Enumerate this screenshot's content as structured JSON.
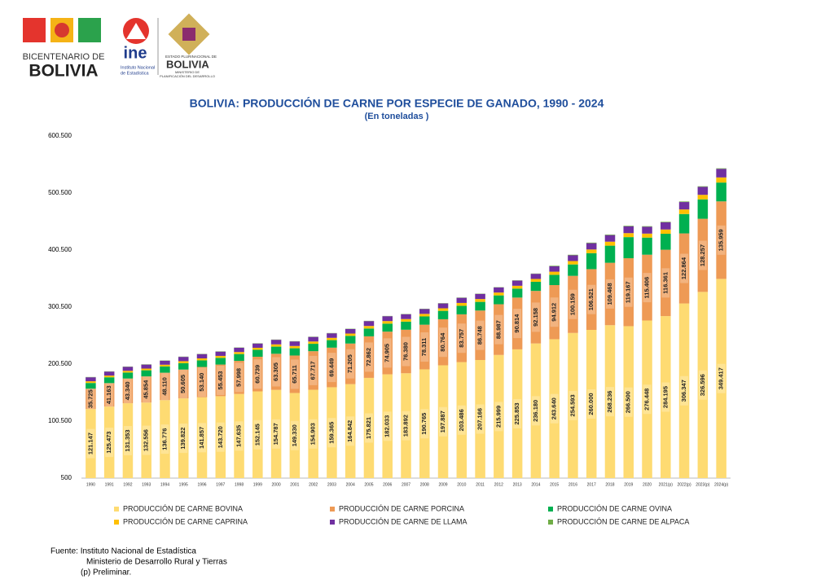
{
  "header": {
    "logo1_line1": "BICENTENARIO DE",
    "logo1_line2": "BOLIVIA",
    "logo2_name": "ine",
    "logo2_line1": "Instituto Nacional",
    "logo2_line2": "de Estadística",
    "logo3_line1": "ESTADO PLURINACIONAL DE",
    "logo3_line2": "BOLIVIA",
    "logo3_line3": "MINISTERIO DE",
    "logo3_line4": "PLANIFICACIÓN DEL DESARROLLO"
  },
  "chart_data": {
    "type": "stacked-bar",
    "title": "BOLIVIA: PRODUCCIÓN DE CARNE POR ESPECIE DE GANADO, 1990 - 2024",
    "subtitle": "(En toneladas )",
    "categories": [
      "1990",
      "1991",
      "1992",
      "1993",
      "1994",
      "1995",
      "1996",
      "1997",
      "1998",
      "1999",
      "2000",
      "2001",
      "2002",
      "2003",
      "2004",
      "2005",
      "2006",
      "2007",
      "2008",
      "2009",
      "2010",
      "2011",
      "2012",
      "2013",
      "2014",
      "2015",
      "2016",
      "2017",
      "2018",
      "2019",
      "2020",
      "2021(p)",
      "2022(p)",
      "2023(p)",
      "2024(p)"
    ],
    "ylim": [
      500,
      600500
    ],
    "yticks": [
      500,
      {
        "value": 100500,
        "label": "100.500"
      },
      {
        "value": 200500,
        "label": "200.500"
      },
      {
        "value": 300500,
        "label": "300.500"
      },
      {
        "value": 400500,
        "label": "400.500"
      },
      {
        "value": 500500,
        "label": "500.500"
      },
      {
        "value": 600500,
        "label": "600.500"
      }
    ],
    "grid": false,
    "legend": "bottom",
    "series": [
      {
        "name": "PRODUCCIÓN DE CARNE BOVINA",
        "color": "#fedb72",
        "values": [
          121147,
          125473,
          131353,
          132556,
          136776,
          139822,
          141857,
          143720,
          147635,
          152145,
          154787,
          149330,
          154903,
          159365,
          164842,
          175821,
          182033,
          183892,
          190765,
          197887,
          203486,
          207166,
          215999,
          225853,
          236180,
          243640,
          254593,
          260000,
          268236,
          266500,
          276448,
          284195,
          306347,
          326596,
          349417
        ],
        "value_labels": [
          "121.147",
          "125.473",
          "131.353",
          "132.556",
          "136.776",
          "139.822",
          "141.857",
          "143.720",
          "147.635",
          "152.145",
          "154.787",
          "149.330",
          "154.903",
          "159.365",
          "164.842",
          "175.821",
          "182.033",
          "183.892",
          "190.765",
          "197.887",
          "203.486",
          "207.166",
          "215.999",
          "225.853",
          "236.180",
          "243.640",
          "254.593",
          "260.000",
          "268.236",
          "266.500",
          "276.448",
          "284.195",
          "306.347",
          "326.596",
          "349.417"
        ]
      },
      {
        "name": "PRODUCCIÓN DE CARNE PORCINA",
        "color": "#ee9a55",
        "values": [
          35725,
          41163,
          43340,
          45854,
          48110,
          50605,
          53140,
          55453,
          57998,
          60739,
          63305,
          65711,
          67717,
          69449,
          71205,
          72862,
          74905,
          76380,
          78311,
          80764,
          83757,
          86748,
          88987,
          90814,
          92158,
          94912,
          100159,
          106521,
          109468,
          119167,
          115406,
          116361,
          122864,
          128257,
          135959
        ],
        "value_labels": [
          "35.725",
          "41.163",
          "43.340",
          "45.854",
          "48.110",
          "50.605",
          "53.140",
          "55.453",
          "57.998",
          "60.739",
          "63.305",
          "65.711",
          "67.717",
          "69.449",
          "71.205",
          "72.862",
          "74.905",
          "76.380",
          "78.311",
          "80.764",
          "83.757",
          "86.748",
          "88.987",
          "90.814",
          "92.158",
          "94.912",
          "100.159",
          "106.521",
          "109.468",
          "119.167",
          "115.406",
          "116.361",
          "122.864",
          "128.257",
          "135.959"
        ]
      },
      {
        "name": "PRODUCCIÓN DE CARNE OVINA",
        "color": "#00b050",
        "values": [
          10000,
          10200,
          10500,
          10700,
          11000,
          11200,
          11500,
          11700,
          12000,
          12200,
          12500,
          12700,
          13000,
          13200,
          13500,
          13700,
          14000,
          14200,
          14500,
          14700,
          15000,
          15200,
          15500,
          15700,
          16000,
          18000,
          20000,
          28000,
          30000,
          37000,
          30000,
          28000,
          34000,
          34000,
          33000
        ]
      },
      {
        "name": "PRODUCCIÓN DE CARNE CAPRINA",
        "color": "#ffc000",
        "values": [
          3000,
          3000,
          3000,
          3000,
          3000,
          3500,
          3500,
          3500,
          3500,
          3500,
          4000,
          4000,
          4000,
          4000,
          4000,
          4500,
          4500,
          4500,
          4500,
          4500,
          5000,
          5000,
          5000,
          5000,
          5000,
          5500,
          6000,
          6500,
          7000,
          7000,
          7000,
          7500,
          8000,
          8000,
          9000
        ]
      },
      {
        "name": "PRODUCCIÓN DE CARNE DE LLAMA",
        "color": "#7030a0",
        "values": [
          7000,
          7000,
          7000,
          7000,
          7000,
          7500,
          7500,
          7500,
          7500,
          7500,
          8000,
          8000,
          8000,
          8000,
          8000,
          8500,
          8500,
          8500,
          8500,
          8500,
          9000,
          9000,
          9000,
          9000,
          9000,
          9500,
          10000,
          11000,
          11500,
          12000,
          12000,
          12500,
          13000,
          14000,
          15000
        ]
      },
      {
        "name": "PRODUCCIÓN DE CARNE DE ALPACA",
        "color": "#70ad47",
        "values": [
          500,
          500,
          500,
          500,
          500,
          500,
          500,
          500,
          500,
          500,
          500,
          500,
          500,
          500,
          500,
          500,
          500,
          500,
          500,
          500,
          500,
          500,
          500,
          500,
          500,
          1000,
          1000,
          1000,
          1000,
          1000,
          1000,
          1000,
          1000,
          1000,
          1000
        ]
      }
    ]
  },
  "footer": {
    "source": "Fuente: Instituto Nacional de Estadística",
    "source2": "Ministerio de Desarrollo Rural y Tierras",
    "note": "(p) Preliminar."
  }
}
